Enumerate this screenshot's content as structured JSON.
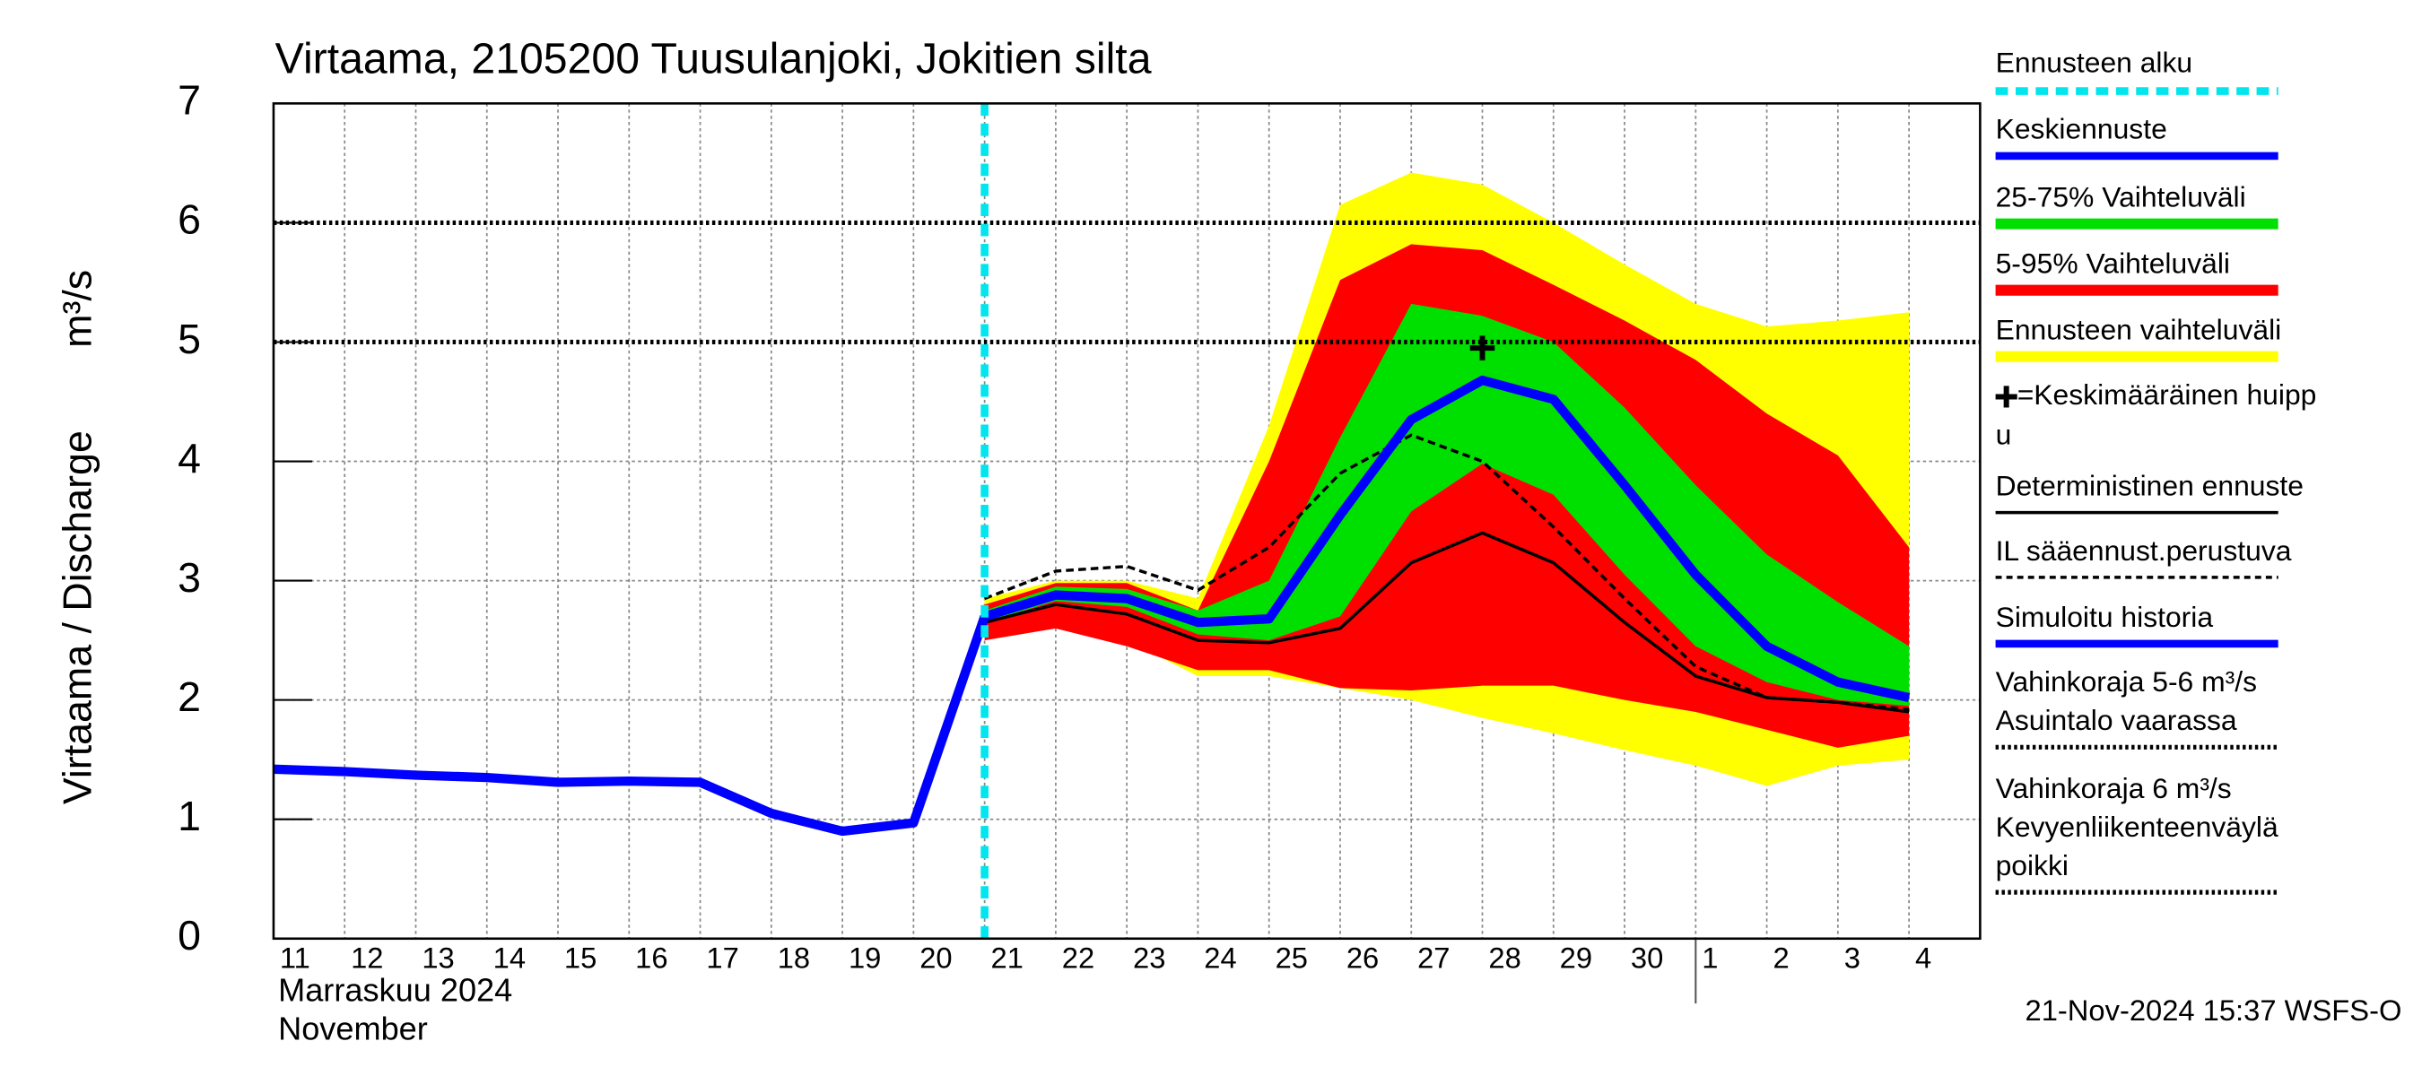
{
  "chart_data": {
    "type": "line",
    "title": "Virtaama, 2105200 Tuusulanjoki, Jokitien silta",
    "ylabel": "Virtaama / Discharge",
    "yunit": "m³/s",
    "xlabel_lines": [
      "Marraskuu 2024",
      "November"
    ],
    "footer": "21-Nov-2024 15:37 WSFS-O",
    "categories": [
      "11",
      "12",
      "13",
      "14",
      "15",
      "16",
      "17",
      "18",
      "19",
      "20",
      "21",
      "22",
      "23",
      "24",
      "25",
      "26",
      "27",
      "28",
      "29",
      "30",
      "1",
      "2",
      "3",
      "4"
    ],
    "month_start_index": 20,
    "ylim": [
      0,
      7
    ],
    "yticks": [
      0,
      1,
      2,
      3,
      4,
      5,
      6,
      7
    ],
    "grid": true,
    "forecast_start": {
      "name": "Ennusteen alku",
      "index": 10,
      "color": "#00e5ee"
    },
    "bands": [
      {
        "name": "Ennusteen vaihteluväli",
        "color": "#ffff00",
        "upper": [
          null,
          null,
          null,
          null,
          null,
          null,
          null,
          null,
          null,
          null,
          2.85,
          3.0,
          3.0,
          2.85,
          4.3,
          6.15,
          6.42,
          6.32,
          6.0,
          5.65,
          5.32,
          5.13,
          5.18,
          5.25
        ],
        "lower": [
          null,
          null,
          null,
          null,
          null,
          null,
          null,
          null,
          null,
          null,
          2.55,
          2.65,
          2.5,
          2.2,
          2.2,
          2.1,
          2.0,
          1.85,
          1.72,
          1.58,
          1.45,
          1.28,
          1.45,
          1.5
        ]
      },
      {
        "name": "5-95% Vaihteluväli",
        "color": "#ff0000",
        "upper": [
          null,
          null,
          null,
          null,
          null,
          null,
          null,
          null,
          null,
          null,
          2.8,
          2.98,
          2.98,
          2.75,
          4.0,
          5.52,
          5.82,
          5.77,
          5.48,
          5.18,
          4.85,
          4.4,
          4.05,
          3.28
        ],
        "lower": [
          null,
          null,
          null,
          null,
          null,
          null,
          null,
          null,
          null,
          null,
          2.5,
          2.6,
          2.45,
          2.25,
          2.25,
          2.1,
          2.08,
          2.12,
          2.12,
          2.0,
          1.9,
          1.75,
          1.6,
          1.7
        ]
      },
      {
        "name": "25-75% Vaihteluväli",
        "color": "#00e000",
        "upper": [
          null,
          null,
          null,
          null,
          null,
          null,
          null,
          null,
          null,
          null,
          2.75,
          2.95,
          2.93,
          2.75,
          3.0,
          4.2,
          5.32,
          5.22,
          5.0,
          4.45,
          3.8,
          3.22,
          2.82,
          2.45
        ],
        "lower": [
          null,
          null,
          null,
          null,
          null,
          null,
          null,
          null,
          null,
          null,
          2.65,
          2.83,
          2.78,
          2.55,
          2.5,
          2.7,
          3.58,
          3.98,
          3.72,
          3.05,
          2.45,
          2.15,
          2.0,
          1.95
        ]
      }
    ],
    "series": [
      {
        "name": "Deterministinen ennuste",
        "color": "#000000",
        "width": 2,
        "style": "solid",
        "values": [
          null,
          null,
          null,
          null,
          null,
          null,
          null,
          null,
          null,
          null,
          2.65,
          2.8,
          2.72,
          2.5,
          2.48,
          2.6,
          3.15,
          3.4,
          3.15,
          2.65,
          2.2,
          2.02,
          1.98,
          1.9
        ]
      },
      {
        "name": "IL sääennust.perustuva",
        "color": "#000000",
        "width": 2,
        "style": "dashed",
        "values": [
          null,
          null,
          null,
          null,
          null,
          null,
          null,
          null,
          null,
          null,
          2.85,
          3.08,
          3.12,
          2.92,
          3.28,
          3.9,
          4.22,
          4.0,
          3.45,
          2.85,
          2.28,
          2.02,
          1.98,
          1.92
        ]
      },
      {
        "name": "Keskiennuste",
        "color": "#0000ff",
        "width": 6,
        "style": "solid",
        "values": [
          null,
          null,
          null,
          null,
          null,
          null,
          null,
          null,
          null,
          null,
          2.7,
          2.88,
          2.85,
          2.65,
          2.68,
          3.55,
          4.35,
          4.68,
          4.52,
          3.8,
          3.05,
          2.45,
          2.15,
          2.02
        ]
      },
      {
        "name": "Simuloitu historia",
        "color": "#0000ff",
        "width": 6,
        "style": "solid",
        "values": [
          1.42,
          1.4,
          1.37,
          1.35,
          1.31,
          1.32,
          1.31,
          1.05,
          0.9,
          0.97,
          2.7,
          null,
          null,
          null,
          null,
          null,
          null,
          null,
          null,
          null,
          null,
          null,
          null,
          null
        ]
      }
    ],
    "peak": {
      "lines": [
        "=Keskimääräinen huipp",
        "u"
      ],
      "index": 17,
      "value": 4.95
    },
    "thresholds": [
      {
        "lines": [
          "Vahinkoraja 5-6 m³/s",
          "Asuintalo vaarassa"
        ],
        "value": 5
      },
      {
        "lines": [
          "Vahinkoraja 6 m³/s",
          "Kevyenliikenteenväylä",
          " poikki"
        ],
        "value": 6
      }
    ]
  }
}
